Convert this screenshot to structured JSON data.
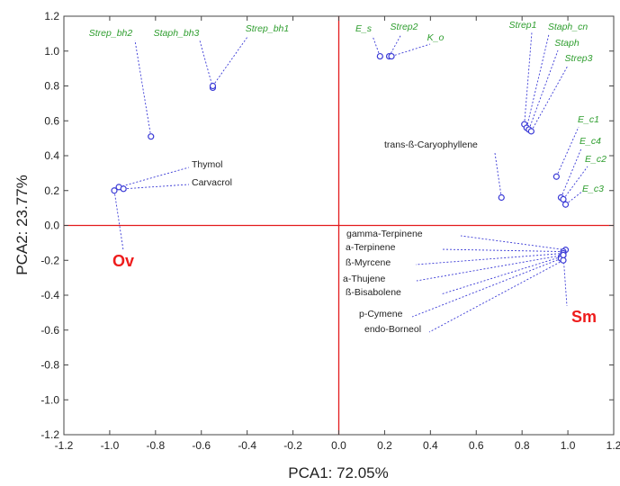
{
  "chart_data": {
    "type": "scatter",
    "title": "",
    "xlabel": "PCA1: 72.05%",
    "ylabel": "PCA2: 23.77%",
    "xlim": [
      -1.2,
      1.2
    ],
    "ylim": [
      -1.2,
      1.2
    ],
    "xticks": [
      "-1.2",
      "-1.0",
      "-0.8",
      "-0.6",
      "-0.4",
      "-0.2",
      "0.0",
      "0.2",
      "0.4",
      "0.6",
      "0.8",
      "1.0",
      "1.2"
    ],
    "yticks": [
      "-1.2",
      "-1.0",
      "-0.8",
      "-0.6",
      "-0.4",
      "-0.2",
      "0.0",
      "0.2",
      "0.4",
      "0.6",
      "0.8",
      "1.0",
      "1.2"
    ],
    "grid": false,
    "colors": {
      "points": "#3a3ad6",
      "zero_lines": "#e31a1c",
      "bacteria_labels": "#2f9e2f",
      "compound_labels": "#222222",
      "group_labels": "#ee1c1c"
    },
    "groups": [
      {
        "name": "Ov",
        "x": -0.98,
        "y": 0.2
      },
      {
        "name": "Sm",
        "x": 0.98,
        "y": -0.17
      }
    ],
    "bacteria": [
      {
        "name": "Strep_bh2",
        "x": -0.82,
        "y": 0.51
      },
      {
        "name": "Staph_bh3",
        "x": -0.55,
        "y": 0.79
      },
      {
        "name": "Strep_bh1",
        "x": -0.55,
        "y": 0.8
      },
      {
        "name": "E_s",
        "x": 0.18,
        "y": 0.97
      },
      {
        "name": "Strep2",
        "x": 0.22,
        "y": 0.97
      },
      {
        "name": "K_o",
        "x": 0.23,
        "y": 0.97
      },
      {
        "name": "Strep1",
        "x": 0.81,
        "y": 0.58
      },
      {
        "name": "Staph_cn",
        "x": 0.82,
        "y": 0.56
      },
      {
        "name": "Staph",
        "x": 0.83,
        "y": 0.55
      },
      {
        "name": "Strep3",
        "x": 0.84,
        "y": 0.54
      },
      {
        "name": "E_c1",
        "x": 0.95,
        "y": 0.28
      },
      {
        "name": "E_c4",
        "x": 0.97,
        "y": 0.16
      },
      {
        "name": "E_c2",
        "x": 0.98,
        "y": 0.15
      },
      {
        "name": "E_c3",
        "x": 0.99,
        "y": 0.12
      }
    ],
    "compounds": [
      {
        "name": "Thymol",
        "x": -0.96,
        "y": 0.22
      },
      {
        "name": "Carvacrol",
        "x": -0.94,
        "y": 0.21
      },
      {
        "name": "trans-ß-Caryophyllene",
        "x": 0.71,
        "y": 0.16
      },
      {
        "name": "gamma-Terpinene",
        "x": 0.99,
        "y": -0.14
      },
      {
        "name": "a-Terpinene",
        "x": 0.98,
        "y": -0.15
      },
      {
        "name": "ß-Myrcene",
        "x": 0.98,
        "y": -0.16
      },
      {
        "name": "a-Thujene",
        "x": 0.98,
        "y": -0.17
      },
      {
        "name": "ß-Bisabolene",
        "x": 0.97,
        "y": -0.18
      },
      {
        "name": "p-Cymene",
        "x": 0.97,
        "y": -0.19
      },
      {
        "name": "endo-Borneol",
        "x": 0.98,
        "y": -0.2
      }
    ]
  }
}
